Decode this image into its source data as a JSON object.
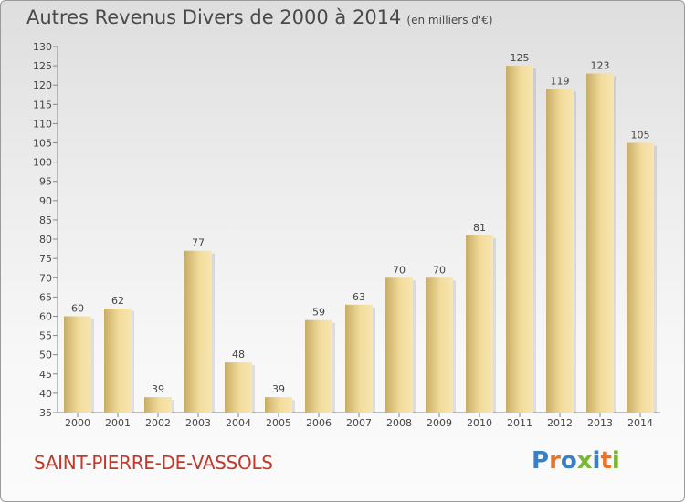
{
  "title": "Autres Revenus Divers de 2000 à 2014",
  "unit_note": "(en milliers d'€)",
  "commune": "SAINT-PIERRE-DE-VASSOLS",
  "logo": {
    "text": "Proxiti",
    "colors": [
      "#3b7fc4",
      "#e8742a",
      "#3b7fc4",
      "#78b833",
      "#3b7fc4",
      "#e8742a",
      "#78b833"
    ]
  },
  "colors": {
    "bar_light": "#f5e2a6",
    "bar_dark": "#c8ad66",
    "title": "#4a4a4a",
    "commune": "#c0392b"
  },
  "chart_data": {
    "type": "bar",
    "categories": [
      "2000",
      "2001",
      "2002",
      "2003",
      "2004",
      "2005",
      "2006",
      "2007",
      "2008",
      "2009",
      "2010",
      "2011",
      "2012",
      "2013",
      "2014"
    ],
    "values": [
      60,
      62,
      39,
      77,
      48,
      39,
      59,
      63,
      70,
      70,
      81,
      125,
      119,
      123,
      105
    ],
    "ylim": [
      35,
      130
    ],
    "yticks": [
      35,
      40,
      45,
      50,
      55,
      60,
      65,
      70,
      75,
      80,
      85,
      90,
      95,
      100,
      105,
      110,
      115,
      120,
      125,
      130
    ],
    "grid": false
  }
}
